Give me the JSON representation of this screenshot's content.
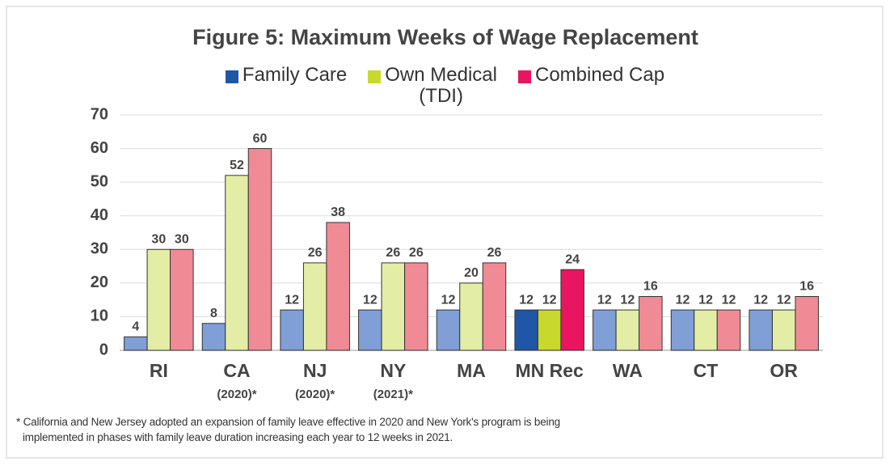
{
  "chart_data": {
    "type": "bar",
    "title": "Figure 5:  Maximum Weeks of Wage Replacement",
    "categories": [
      "RI",
      "CA",
      "NJ",
      "NY",
      "MA",
      "MN Rec",
      "WA",
      "CT",
      "OR"
    ],
    "category_sublabels": [
      null,
      "(2020)*",
      "(2020)*",
      "(2021)*",
      null,
      null,
      null,
      null,
      null
    ],
    "highlight_category": "MN Rec",
    "series": [
      {
        "name": "Family Care",
        "color": "#7f9fd6",
        "highlight_color": "#1f56a5",
        "values": [
          4,
          8,
          12,
          12,
          12,
          12,
          12,
          12,
          12
        ]
      },
      {
        "name": "Own Medical\n(TDI)",
        "color": "#e4eda6",
        "highlight_color": "#c8d82c",
        "values": [
          30,
          52,
          26,
          26,
          20,
          12,
          12,
          12,
          12
        ]
      },
      {
        "name": "Combined Cap",
        "color": "#f08b95",
        "highlight_color": "#ea1560",
        "values": [
          30,
          60,
          38,
          26,
          26,
          24,
          16,
          12,
          16
        ]
      }
    ],
    "ylim": [
      0,
      70
    ],
    "yticks": [
      0,
      10,
      20,
      30,
      40,
      50,
      60,
      70
    ],
    "grid": true,
    "legend": "top",
    "footnote": "* California and New Jersey adopted an expansion of family leave effective in 2020 and New York's program is being implemented in phases with family leave duration increasing each year to 12 weeks in 2021."
  }
}
